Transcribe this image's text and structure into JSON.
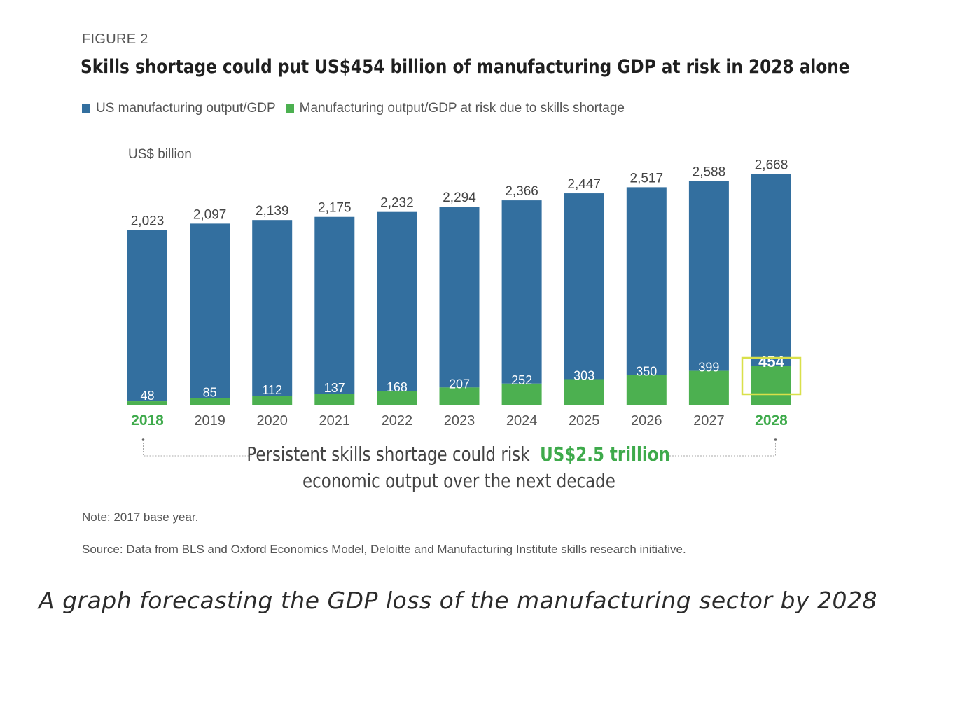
{
  "figure_label": "FIGURE 2",
  "title": "Skills shortage could put US$454 billion of manufacturing GDP at risk in 2028 alone",
  "legend": [
    {
      "label": "US manufacturing output/GDP",
      "color": "#336f9f"
    },
    {
      "label": "Manufacturing output/GDP at risk due to skills shortage",
      "color": "#4cb050"
    }
  ],
  "unit_label": "US$ billion",
  "annotation": {
    "prefix": "Persistent skills shortage could risk",
    "highlight": "US$2.5 trillion",
    "line2": "economic output over the next decade"
  },
  "note": "Note: 2017 base year.",
  "source": "Source: Data from BLS and Oxford Economics Model, Deloitte and Manufacturing Institute skills research initiative.",
  "caption": "A graph forecasting the GDP loss of the manufacturing sector by 2028",
  "chart_data": {
    "type": "bar",
    "categories": [
      "2018",
      "2019",
      "2020",
      "2021",
      "2022",
      "2023",
      "2024",
      "2025",
      "2026",
      "2027",
      "2028"
    ],
    "highlighted_categories": [
      "2018",
      "2028"
    ],
    "series": [
      {
        "name": "US manufacturing output/GDP",
        "values": [
          2023,
          2097,
          2139,
          2175,
          2232,
          2294,
          2366,
          2447,
          2517,
          2588,
          2668
        ],
        "labels": [
          "2,023",
          "2,097",
          "2,139",
          "2,175",
          "2,232",
          "2,294",
          "2,366",
          "2,447",
          "2,517",
          "2,588",
          "2,668"
        ],
        "color": "#336f9f"
      },
      {
        "name": "Manufacturing output/GDP at risk due to skills shortage",
        "values": [
          48,
          85,
          112,
          137,
          168,
          207,
          252,
          303,
          350,
          399,
          454
        ],
        "color": "#4cb050"
      }
    ],
    "boxed_value": "454",
    "ylabel": "US$ billion",
    "colors": {
      "highlight_box": "#d9e04a",
      "highlight_year": "#3eaa4b",
      "year": "#555555"
    }
  }
}
